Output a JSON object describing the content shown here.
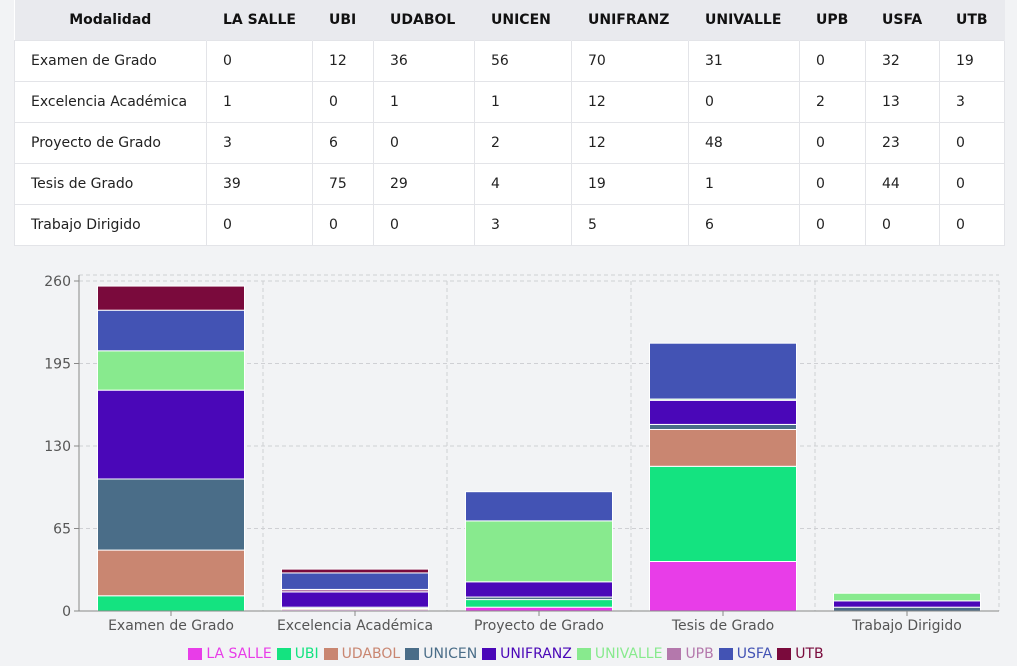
{
  "table": {
    "headers": [
      "Modalidad",
      "LA SALLE",
      "UBI",
      "UDABOL",
      "UNICEN",
      "UNIFRANZ",
      "UNIVALLE",
      "UPB",
      "USFA",
      "UTB"
    ],
    "rows": [
      [
        "Examen de Grado",
        "0",
        "12",
        "36",
        "56",
        "70",
        "31",
        "0",
        "32",
        "19"
      ],
      [
        "Excelencia Académica",
        "1",
        "0",
        "1",
        "1",
        "12",
        "0",
        "2",
        "13",
        "3"
      ],
      [
        "Proyecto de Grado",
        "3",
        "6",
        "0",
        "2",
        "12",
        "48",
        "0",
        "23",
        "0"
      ],
      [
        "Tesis de Grado",
        "39",
        "75",
        "29",
        "4",
        "19",
        "1",
        "0",
        "44",
        "0"
      ],
      [
        "Trabajo Dirigido",
        "0",
        "0",
        "0",
        "3",
        "5",
        "6",
        "0",
        "0",
        "0"
      ]
    ]
  },
  "chart_data": {
    "type": "bar",
    "stacked": true,
    "categories": [
      "Examen de Grado",
      "Excelencia Académica",
      "Proyecto de Grado",
      "Tesis de Grado",
      "Trabajo Dirigido"
    ],
    "series": [
      {
        "name": "LA SALLE",
        "color": "#e83de8",
        "values": [
          0,
          1,
          3,
          39,
          0
        ]
      },
      {
        "name": "UBI",
        "color": "#14e380",
        "values": [
          12,
          0,
          6,
          75,
          0
        ]
      },
      {
        "name": "UDABOL",
        "color": "#c98671",
        "values": [
          36,
          1,
          0,
          29,
          0
        ]
      },
      {
        "name": "UNICEN",
        "color": "#4a6d88",
        "values": [
          56,
          1,
          2,
          4,
          3
        ]
      },
      {
        "name": "UNIFRANZ",
        "color": "#4a07b8",
        "values": [
          70,
          12,
          12,
          19,
          5
        ]
      },
      {
        "name": "UNIVALLE",
        "color": "#88ea8e",
        "values": [
          31,
          0,
          48,
          1,
          6
        ]
      },
      {
        "name": "UPB",
        "color": "#b478ac",
        "values": [
          0,
          2,
          0,
          0,
          0
        ]
      },
      {
        "name": "USFA",
        "color": "#4353b4",
        "values": [
          32,
          13,
          23,
          44,
          0
        ]
      },
      {
        "name": "UTB",
        "color": "#7a0a3c",
        "values": [
          19,
          3,
          0,
          0,
          0
        ]
      }
    ],
    "yticks": [
      0,
      65,
      130,
      195,
      260
    ],
    "ylim": [
      0,
      260
    ],
    "grid": true,
    "legend": "bottom"
  }
}
